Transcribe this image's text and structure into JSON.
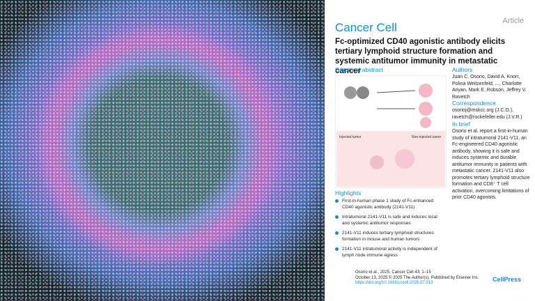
{
  "header": {
    "type_label": "Article",
    "journal": "Cancer Cell",
    "title": "Fc-optimized CD40 agonistic antibody elicits tertiary lymphoid structure formation and systemic antitumor immunity in metastatic cancer"
  },
  "graphical_abstract": {
    "heading": "Graphical abstract",
    "labels": [
      "Injected tumor",
      "Non-injected tumor"
    ]
  },
  "authors": {
    "heading": "Authors",
    "text": "Juan C. Osorio, David A. Knorr, Polina Weitzenfeld, ..., Charlotte Ariyan, Mark E. Robson, Jeffrey V. Ravetch"
  },
  "correspondence": {
    "heading": "Correspondence",
    "text": "osorioj@mskcc.org (J.C.O.), ravetch@rockefeller.edu (J.V.R.)"
  },
  "in_brief": {
    "heading": "In brief",
    "text": "Osorio et al. report a first-in-human study of intratumoral 2141-V11, an Fc-engineered CD40 agonistic antibody, showing it is safe and induces systemic and durable antitumor immunity in patients with metastatic cancer. 2141-V11 also promotes tertiary lymphoid structure formation and CD8⁺ T cell activation, overcoming limitations of prior CD40 agonists."
  },
  "highlights": {
    "heading": "Highlights",
    "items": [
      "First-in-human phase 1 study of Fc-enhanced CD40 agonistic antibody (2141-V11)",
      "Intratumoral 2141-V11 is safe and induces local and systemic antitumor responses",
      "2141-V11 induces tertiary lymphoid structures formation in mouse and human tumors",
      "2141-V11 intratumoral activity is independent of lymph node immune egress"
    ]
  },
  "footer": {
    "citation": "Osorio et al., 2025, Cancer Cell 43, 1–15",
    "date": "October 13, 2025 © 2025 The Author(s). Published by Elsevier Inc.",
    "doi": "https://doi.org/10.1016/j.ccell.2025.07.013",
    "publisher": "CellPress"
  }
}
